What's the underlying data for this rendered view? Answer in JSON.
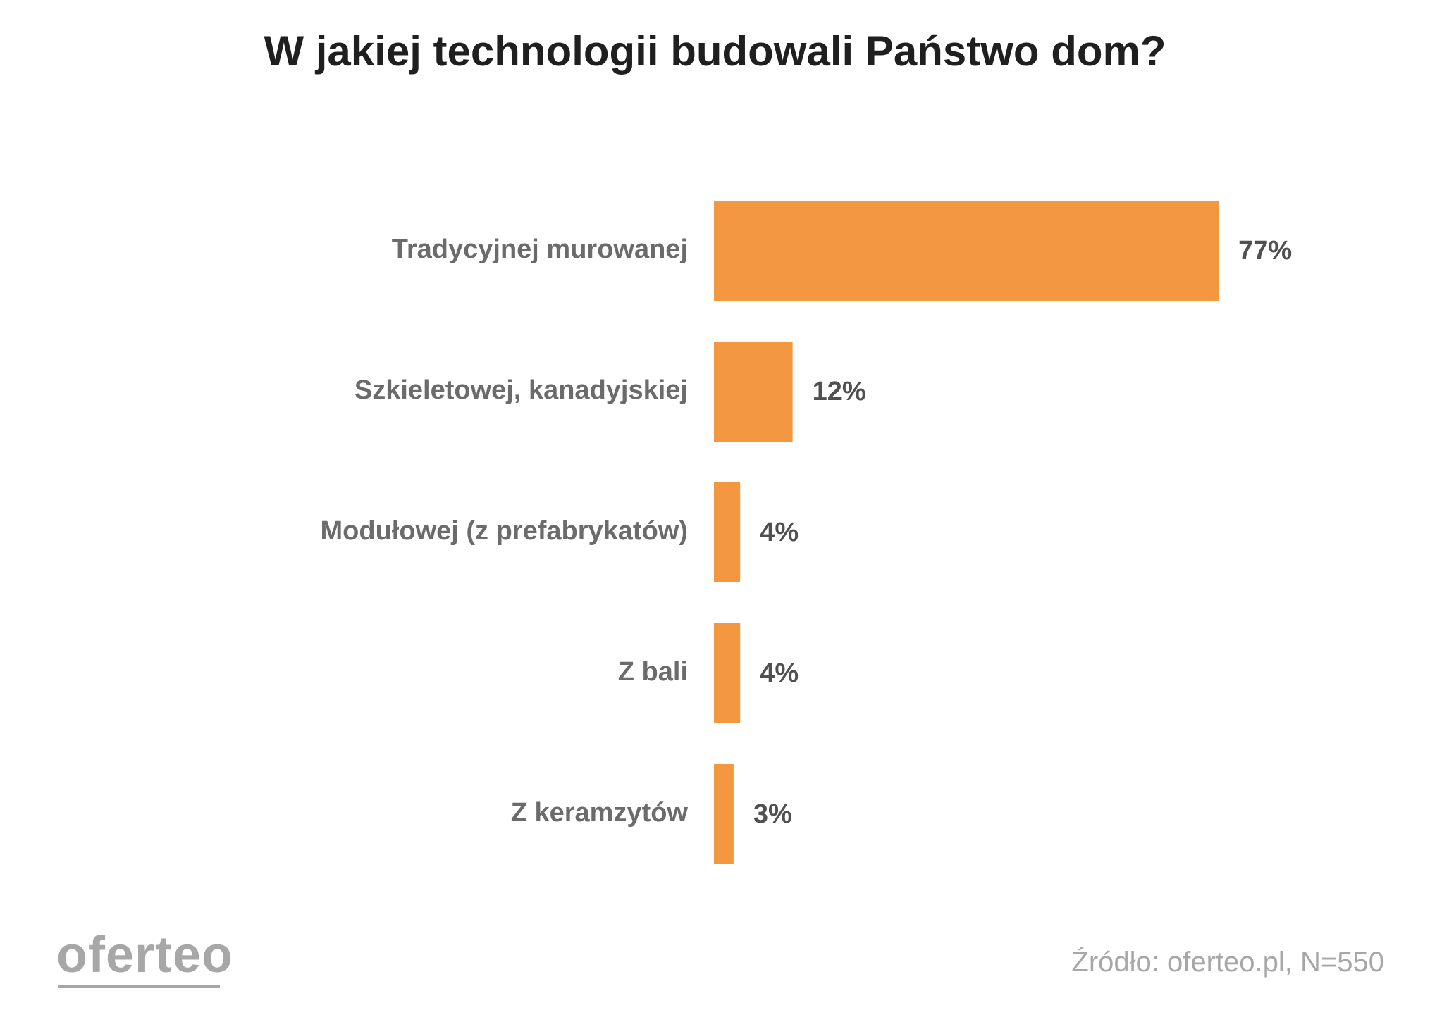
{
  "chart_data": {
    "type": "bar",
    "orientation": "horizontal",
    "title": "W jakiej technologii budowali Państwo dom?",
    "categories": [
      "Tradycyjnej murowanej",
      "Szkieletowej, kanadyjskiej",
      "Modułowej (z prefabrykatów)",
      "Z bali",
      "Z keramzytów"
    ],
    "values": [
      77,
      12,
      4,
      4,
      3
    ],
    "value_labels": [
      "77%",
      "12%",
      "4%",
      "4%",
      "3%"
    ],
    "unit": "%",
    "bar_color": "#f39841",
    "grid": false,
    "axes_visible": false
  },
  "branding": {
    "logo_text": "oferteo",
    "source_text": "Źródło: oferteo.pl, N=550"
  }
}
